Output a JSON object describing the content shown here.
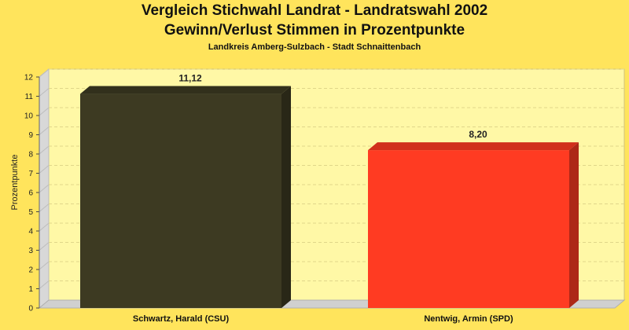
{
  "chart_data": {
    "type": "bar",
    "title": "Vergleich Stichwahl Landrat - Landratswahl 2002",
    "subtitle_line2": "Gewinn/Verlust Stimmen in Prozentpunkte",
    "subtitle": "Landkreis Amberg-Sulzbach - Stadt Schnaittenbach",
    "ylabel": "Prozentpunkte",
    "xlabel": "",
    "categories": [
      "Schwartz, Harald (CSU)",
      "Nentwig, Armin (SPD)"
    ],
    "values": [
      11.12,
      8.2
    ],
    "value_labels": [
      "11,12",
      "8,20"
    ],
    "colors": [
      "#3d3a22",
      "#ff3b22"
    ],
    "ylim": [
      0,
      12
    ],
    "yticks": [
      0,
      1,
      2,
      3,
      4,
      5,
      6,
      7,
      8,
      9,
      10,
      11,
      12
    ],
    "grid": true,
    "legend": "none"
  }
}
